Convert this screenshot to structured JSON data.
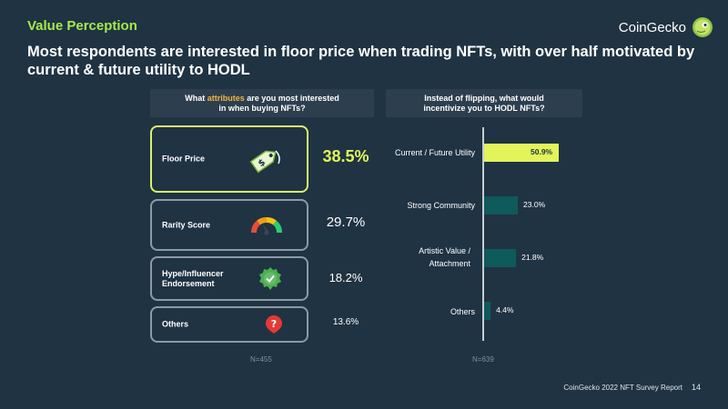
{
  "header": {
    "section_title": "Value Perception",
    "headline": "Most respondents are interested in floor price when trading NFTs, with over half motivated by current & future utility to HODL",
    "logo_text": "CoinGecko"
  },
  "colors": {
    "background": "#1f3343",
    "accent_green": "#a6e94b",
    "highlight_yellow": "#e2f45a",
    "bar_teal": "#0f5a5b",
    "card_border": "#8d9aa6"
  },
  "chart_data": [
    {
      "type": "table",
      "question_prefix": "What ",
      "question_highlight": "attributes",
      "question_suffix": " are you most interested in when buying NFTs?",
      "rows": [
        {
          "label": "Floor Price",
          "value": 38.5,
          "value_label": "38.5%",
          "icon": "price-tag-icon",
          "highlight": true
        },
        {
          "label": "Rarity Score",
          "value": 29.7,
          "value_label": "29.7%",
          "icon": "gauge-icon",
          "highlight": false
        },
        {
          "label": "Hype/Influencer Endorsement",
          "value": 18.2,
          "value_label": "18.2%",
          "icon": "verified-badge-icon",
          "highlight": false
        },
        {
          "label": "Others",
          "value": 13.6,
          "value_label": "13.6%",
          "icon": "question-icon",
          "highlight": false
        }
      ],
      "sample_size": "N=455"
    },
    {
      "type": "bar",
      "orientation": "horizontal",
      "question": "Instead of flipping, what would incentivize you to HODL NFTs?",
      "categories": [
        "Current / Future Utility",
        "Strong Community",
        "Artistic Value / Attachment",
        "Others"
      ],
      "values": [
        50.9,
        23.0,
        21.8,
        4.4
      ],
      "value_labels": [
        "50.9%",
        "23.0%",
        "21.8%",
        "4.4%"
      ],
      "highlight_index": 0,
      "xlim": [
        0,
        55
      ],
      "sample_size": "N=639"
    }
  ],
  "footer": {
    "report": "CoinGecko 2022 NFT Survey Report",
    "page": "14"
  }
}
